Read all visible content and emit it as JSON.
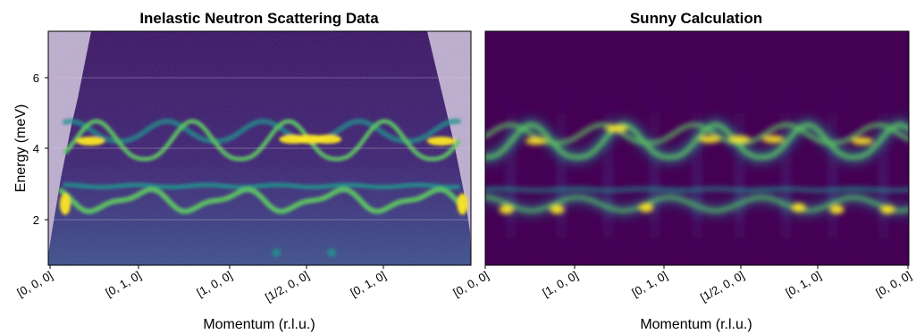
{
  "figure": {
    "colors": {
      "background_low": "#440154",
      "mid_teal": "#21918c",
      "green": "#5ec962",
      "yellow": "#fde725",
      "masked_region": "#c4b1cf",
      "grid": "#d9c8e0"
    }
  },
  "chart_data": [
    {
      "type": "heatmap",
      "title": "Inelastic Neutron Scattering Data",
      "xlabel": "Momentum (r.l.u.)",
      "ylabel": "Energy (meV)",
      "ylim": [
        0.8,
        7.3
      ],
      "yticks": [
        2,
        4,
        6
      ],
      "ytick_labels": [
        "2",
        "4",
        "6"
      ],
      "xticks": [
        "[0, 0, 0]",
        "[0, 1, 0]",
        "[1, 0, 0]",
        "[1/2, 0, 0]",
        "[0, 1, 0]"
      ],
      "grid": true,
      "colormap": "viridis",
      "masked_regions": [
        "upper-left",
        "upper-right"
      ],
      "features": {
        "lower_band_energy": 2.6,
        "upper_band_energy": 3.9,
        "flat_mode_energy": 3.0,
        "upper_maxima_energy": 4.7
      }
    },
    {
      "type": "heatmap",
      "title": "Sunny Calculation",
      "xlabel": "Momentum (r.l.u.)",
      "ylabel": "",
      "ylim": [
        0.8,
        7.3
      ],
      "xticks": [
        "[0, 0, 0]",
        "[1, 0, 0]",
        "[0, 1, 0]",
        "[1/2, 0, 0]",
        "[0, 1, 0]",
        "[0, 0, 0]"
      ],
      "grid": false,
      "colormap": "viridis",
      "features": {
        "lower_band_energy": 2.5,
        "upper_band_energy": 3.9,
        "flat_mode_energy": 2.9,
        "upper_maxima_energy": 4.6
      }
    }
  ]
}
